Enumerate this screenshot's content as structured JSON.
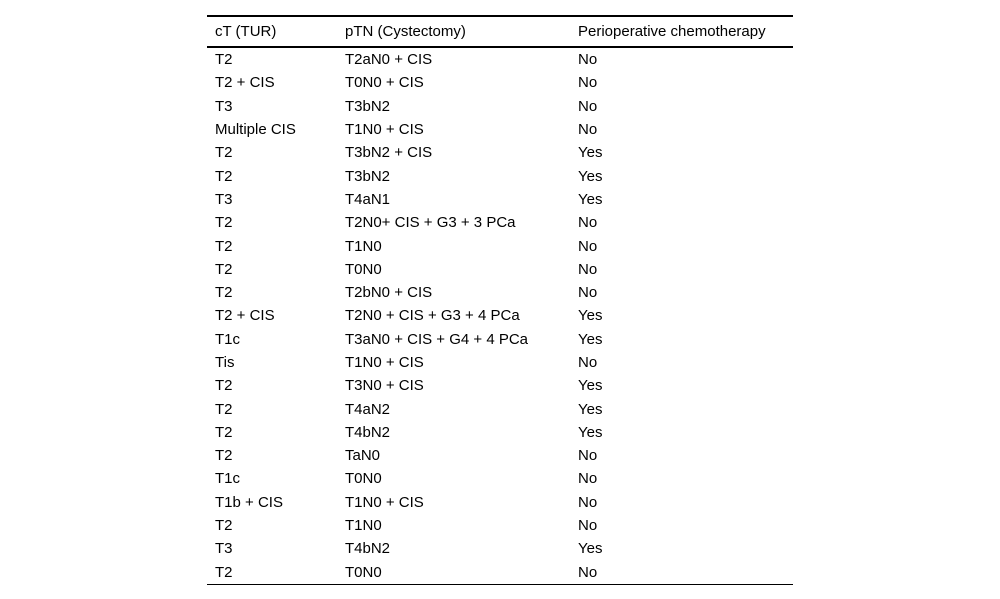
{
  "table": {
    "columns": [
      "cT (TUR)",
      "pTN (Cystectomy)",
      "Perioperative chemotherapy"
    ],
    "rows": [
      [
        "T2",
        "T2aN0 + CIS",
        "No"
      ],
      [
        "T2 + CIS",
        "T0N0 + CIS",
        "No"
      ],
      [
        "T3",
        "T3bN2",
        "No"
      ],
      [
        "Multiple CIS",
        "T1N0 + CIS",
        "No"
      ],
      [
        "T2",
        "T3bN2 + CIS",
        "Yes"
      ],
      [
        "T2",
        "T3bN2",
        "Yes"
      ],
      [
        "T3",
        "T4aN1",
        "Yes"
      ],
      [
        "T2",
        "T2N0+ CIS + G3 + 3 PCa",
        "No"
      ],
      [
        "T2",
        "T1N0",
        "No"
      ],
      [
        "T2",
        "T0N0",
        "No"
      ],
      [
        "T2",
        "T2bN0 + CIS",
        "No"
      ],
      [
        "T2 + CIS",
        "T2N0 + CIS + G3 + 4 PCa",
        "Yes"
      ],
      [
        "T1c",
        "T3aN0 + CIS + G4 + 4 PCa",
        "Yes"
      ],
      [
        "Tis",
        "T1N0 + CIS",
        "No"
      ],
      [
        "T2",
        "T3N0 + CIS",
        "Yes"
      ],
      [
        "T2",
        "T4aN2",
        "Yes"
      ],
      [
        "T2",
        "T4bN2",
        "Yes"
      ],
      [
        "T2",
        "TaN0",
        "No"
      ],
      [
        "T1c",
        "T0N0",
        "No"
      ],
      [
        "T1b + CIS",
        "T1N0 + CIS",
        "No"
      ],
      [
        "T2",
        "T1N0",
        "No"
      ],
      [
        "T3",
        "T4bN2",
        "Yes"
      ],
      [
        "T2",
        "T0N0",
        "No"
      ]
    ],
    "colors": {
      "text": "#000000",
      "background": "#ffffff",
      "rule": "#000000"
    }
  }
}
